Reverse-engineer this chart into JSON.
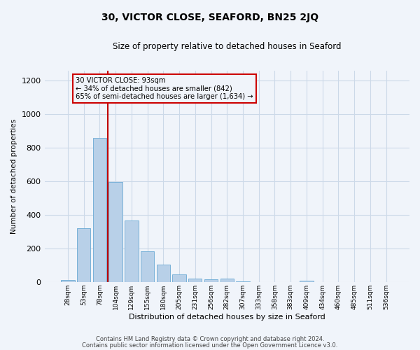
{
  "title": "30, VICTOR CLOSE, SEAFORD, BN25 2JQ",
  "subtitle": "Size of property relative to detached houses in Seaford",
  "xlabel": "Distribution of detached houses by size in Seaford",
  "ylabel": "Number of detached properties",
  "categories": [
    "28sqm",
    "53sqm",
    "78sqm",
    "104sqm",
    "129sqm",
    "155sqm",
    "180sqm",
    "205sqm",
    "231sqm",
    "256sqm",
    "282sqm",
    "307sqm",
    "333sqm",
    "358sqm",
    "383sqm",
    "409sqm",
    "434sqm",
    "460sqm",
    "485sqm",
    "511sqm",
    "536sqm"
  ],
  "values": [
    10,
    320,
    860,
    595,
    365,
    182,
    105,
    47,
    22,
    17,
    20,
    3,
    0,
    0,
    0,
    8,
    0,
    0,
    0,
    0,
    0
  ],
  "bar_color": "#b8d0e8",
  "bar_edge_color": "#6aaad4",
  "grid_color": "#ccd9e8",
  "background_color": "#f0f4fa",
  "vline_color": "#c00000",
  "annotation_text": "30 VICTOR CLOSE: 93sqm\n← 34% of detached houses are smaller (842)\n65% of semi-detached houses are larger (1,634) →",
  "annotation_box_color": "#cc0000",
  "ylim": [
    0,
    1260
  ],
  "footnote1": "Contains HM Land Registry data © Crown copyright and database right 2024.",
  "footnote2": "Contains public sector information licensed under the Open Government Licence v3.0."
}
